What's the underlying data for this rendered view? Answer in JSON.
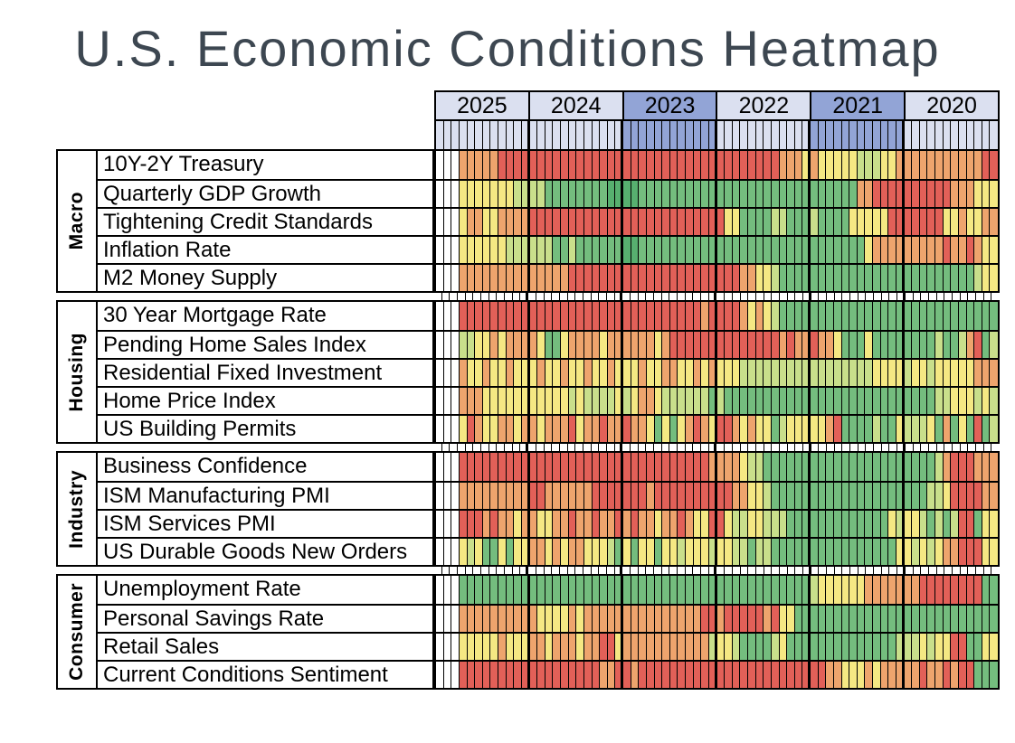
{
  "title": "U.S. Economic Conditions Heatmap",
  "chart_data": {
    "type": "heatmap",
    "title": "U.S. Economic Conditions Heatmap",
    "x_axis": {
      "years": [
        "2025",
        "2024",
        "2023",
        "2022",
        "2021",
        "2020"
      ],
      "months_per_year": 12,
      "order": "most recent year at left; 12 monthly cells under each year header"
    },
    "year_header_colors": {
      "2025": "light",
      "2024": "light",
      "2023": "dark",
      "2022": "light",
      "2021": "dark",
      "2020": "light"
    },
    "tints": {
      "light": "#dbe0f0",
      "dark": "#92a4d6"
    },
    "palette": {
      "R": "#e26058",
      "O": "#eea46d",
      "Y": "#f5e883",
      "L": "#c9df8b",
      "G": "#74bd7e",
      "D": "#57b06f",
      "W": "#ffffff"
    },
    "palette_note": "R=red O=orange Y=yellow L=yellow-green G=green D=dark-green W=empty(no data yet)",
    "groups": [
      {
        "name": "Macro",
        "rows": [
          {
            "label": "10Y-2Y Treasury",
            "values_by_year": {
              "2025": "WWWOOOOORRRR",
              "2024": "RRRRRRRRRRRR",
              "2023": "RRRRRRRRRRRR",
              "2022": "RRRRRRRROOOY",
              "2021": "OYYYYYLLLYYO",
              "2020": "OOOOOOOOOORR"
            }
          },
          {
            "label": "Quarterly GDP Growth",
            "values_by_year": {
              "2025": "WWWYYYYYYYLL",
              "2024": "LLGGGGGGGGDD",
              "2023": "DDGGGGGGGGGG",
              "2022": "GGGGGGGGGGGG",
              "2021": "GGGGGGOORRRR",
              "2020": "RRRRRROOOYYY"
            }
          },
          {
            "label": "Tightening Credit Standards",
            "values_by_year": {
              "2025": "WWWYOOYYOOOO",
              "2024": "RRRRRRRRRRRR",
              "2023": "RRRRRRRRRRRR",
              "2022": "RYYGGGGLLGGG",
              "2021": "LGGGGYYYYYRR",
              "2020": "RRRRRYYOYYOO"
            }
          },
          {
            "label": "Inflation Rate",
            "values_by_year": {
              "2025": "WWWYYYYYYLLL",
              "2024": "LLLGGLGGGGGG",
              "2023": "DDGGGGGGGGGG",
              "2022": "GGGGGGGGGGGG",
              "2021": "GGGGGGGYOOOO",
              "2020": "OOOOOROOROYY"
            }
          },
          {
            "label": "M2 Money Supply",
            "values_by_year": {
              "2025": "WWWOOOOOOOOO",
              "2024": "OOOOORRRRRRR",
              "2023": "RRRRRRRRRRRR",
              "2022": "RRROOYYLGGGG",
              "2021": "GGGGGGGGGGGG",
              "2020": "GGGGGGGGGLYY"
            }
          }
        ]
      },
      {
        "name": "Housing",
        "rows": [
          {
            "label": "30 Year Mortgage Rate",
            "values_by_year": {
              "2025": "WWWRRRRRRRRR",
              "2024": "RRRRRRRRRRRR",
              "2023": "RRRRRRRRRROR",
              "2022": "RRROYOYLGGGG",
              "2021": "GGGGGGGGGGGG",
              "2020": "GGGGGGGGGGGG"
            }
          },
          {
            "label": "Pending Home Sales Index",
            "values_by_year": {
              "2025": "WWWLLYYOYOOO",
              "2024": "OYGGYOOOOYOO",
              "2023": "OOOOYORRRRRR",
              "2022": "RRRRRRRROROO",
              "2021": "ROOYGGGYGGGG",
              "2020": "GGGGLGGLORGL"
            }
          },
          {
            "label": "Residential Fixed Investment",
            "values_by_year": {
              "2025": "WWWOYYOYYOYY",
              "2024": "YOYYOYYOYYOY",
              "2023": "YYOYYOOYYOYO",
              "2022": "YYYLLLLLLLLL",
              "2021": "LLLLLLLLYYYY",
              "2020": "LYYLYYYYYOOO"
            }
          },
          {
            "label": "Home Price Index",
            "values_by_year": {
              "2025": "WWWOOOYYYYYY",
              "2024": "YYYYYLYLLLLY",
              "2023": "LYOOYLLLLLLG",
              "2022": "LGGGGGGGGGGG",
              "2021": "GGGGGGGGGGGG",
              "2020": "GGGGLLYYYLYL"
            }
          },
          {
            "label": "US Building Permits",
            "values_by_year": {
              "2025": "WWWYROYYOOYO",
              "2024": "OYOOORYOOROO",
              "2023": "ROOYGYGYOROY",
              "2022": "RROYOYYGLYYY",
              "2021": "YYORGGGGLGGY",
              "2020": "LLLYGOGYGRGL"
            }
          }
        ]
      },
      {
        "name": "Industry",
        "rows": [
          {
            "label": "Business Confidence",
            "values_by_year": {
              "2025": "WWWRRRRRRRRR",
              "2024": "RRRRRRRRRRRR",
              "2023": "RRRRRRRRRRRO",
              "2022": "OOOYLLGGGGGG",
              "2021": "GGGGGGGGGGGG",
              "2020": "GGGGLORRROOO"
            }
          },
          {
            "label": "ISM Manufacturing PMI",
            "values_by_year": {
              "2025": "WWWOOOOOOOOO",
              "2024": "RROOOOOORRRR",
              "2023": "RRRORRRRRRRR",
              "2022": "RROOYYLGGGGG",
              "2021": "GGGGGGGGGGGG",
              "2020": "GGGLLYRRRROO"
            }
          },
          {
            "label": "ISM Services PMI",
            "values_by_year": {
              "2025": "WWWRRROROOYO",
              "2024": "OYYOOROOROOR",
              "2023": "OROOYOOROYYR",
              "2022": "RYLLYYLLLGGG",
              "2021": "GGGGGGGGGGYL",
              "2020": "YYLGLGLRRGYY"
            }
          },
          {
            "label": "US Durable Goods New Orders",
            "values_by_year": {
              "2025": "WWWYLYGGYGYY",
              "2024": "OOYOYOOYYYLG",
              "2023": "YGYYGYYLYYYL",
              "2022": "YYLLGLLGGGGG",
              "2021": "GGGGGGGGGGGY",
              "2020": "YLYLYOORRRYY"
            }
          }
        ]
      },
      {
        "name": "Consumer",
        "rows": [
          {
            "label": "Unemployment Rate",
            "values_by_year": {
              "2025": "WWWGGGGGGGGG",
              "2024": "GGGGGGGGGGGG",
              "2023": "GGGGGGGGGGGG",
              "2022": "GGGGGGGGGGGG",
              "2021": "LYYYYYYOOOOO",
              "2020": "OORRRRRRRRGG"
            }
          },
          {
            "label": "Personal Savings Rate",
            "values_by_year": {
              "2025": "WWWOOOOOOOOO",
              "2024": "OYYYYOYOOOOO",
              "2023": "OOOOOOOOOORR",
              "2022": "ORRRRRORYYGG",
              "2021": "GGGGGGGGGGGG",
              "2020": "GGGGGGGGGGGG"
            }
          },
          {
            "label": "Retail Sales",
            "values_by_year": {
              "2025": "WWWYYYYYOYYY",
              "2024": "OOYOOOYOORRY",
              "2023": "OOOOOOOOOOOL",
              "2022": "YYLGGGGLYGGG",
              "2021": "GGGGGGGGGGGL",
              "2020": "LLYLYYRRGGYY"
            }
          },
          {
            "label": "Current Conditions Sentiment",
            "values_by_year": {
              "2025": "WWWRRRRRRRRR",
              "2024": "RRRRRRRRROOR",
              "2023": "RORRRRRRRRRR",
              "2022": "RRRRRRRRRRRR",
              "2021": "RROOYYYOYOOO",
              "2020": "OOROORORRGGG"
            }
          }
        ]
      }
    ]
  }
}
